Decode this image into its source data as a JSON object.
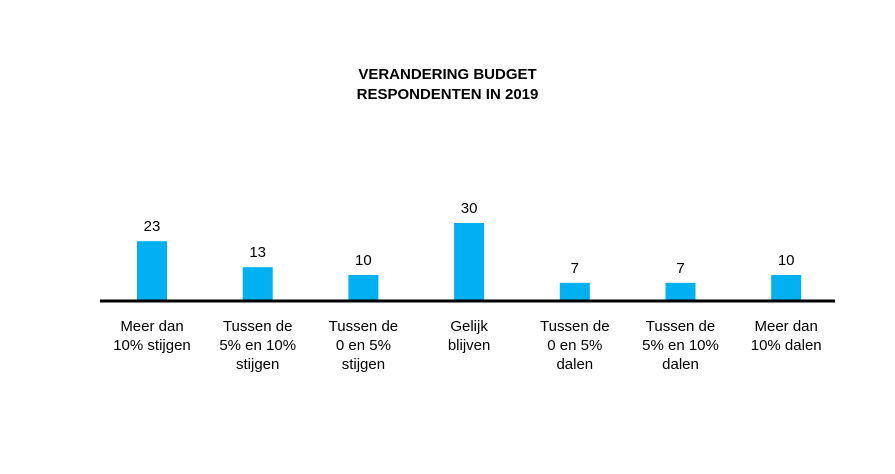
{
  "colors": {
    "bar": "#00b0f0",
    "axis": "#000000",
    "text": "#000000"
  },
  "chart_data": {
    "type": "bar",
    "title": "VERANDERING BUDGET",
    "subtitle": "RESPONDENTEN IN 2019",
    "categories": [
      "Meer dan\n10% stijgen",
      "Tussen de\n5% en 10%\nstijgen",
      "Tussen de\n0 en 5%\nstijgen",
      "Gelijk\nblijven",
      "Tussen de\n0 en 5%\ndalen",
      "Tussen de\n5% en 10%\ndalen",
      "Meer dan\n10% dalen"
    ],
    "values": [
      23,
      13,
      10,
      30,
      7,
      7,
      10
    ],
    "data_labels": [
      "23",
      "13",
      "10",
      "30",
      "7",
      "7",
      "10"
    ],
    "ylim": [
      0,
      40
    ],
    "grid": false,
    "legend": "none",
    "xlabel": "",
    "ylabel": ""
  }
}
